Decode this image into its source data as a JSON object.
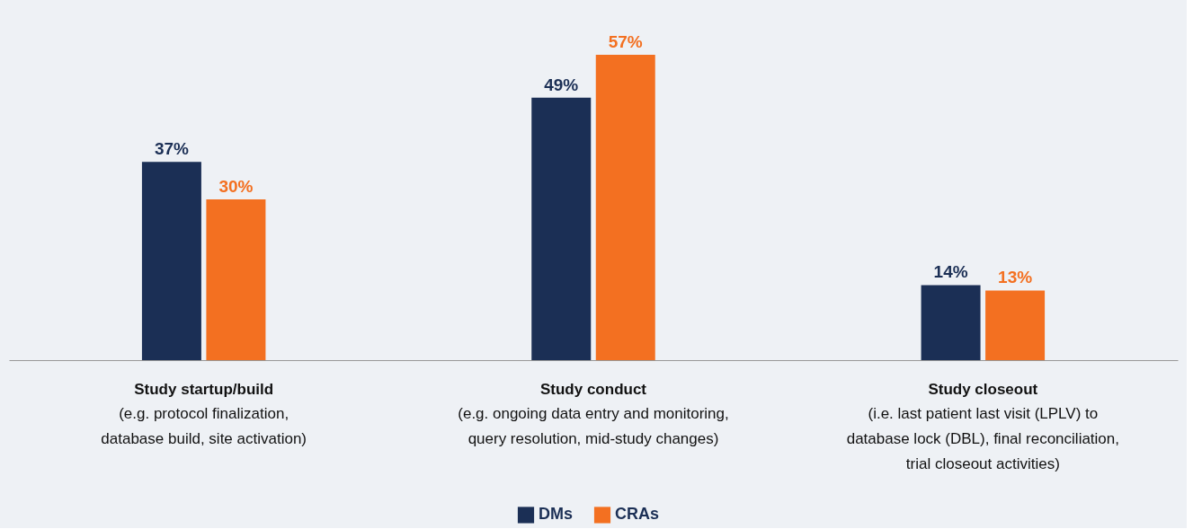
{
  "chart_data": {
    "type": "bar",
    "categories": [
      "Study startup/build",
      "Study conduct",
      "Study closeout"
    ],
    "series": [
      {
        "name": "DMs",
        "color": "#1b2f55",
        "values": [
          37,
          49,
          14
        ],
        "value_labels": [
          "37%",
          "49%",
          "14%"
        ]
      },
      {
        "name": "CRAs",
        "color": "#f37021",
        "values": [
          30,
          57,
          13
        ],
        "value_labels": [
          "30%",
          "57%",
          "13%"
        ]
      }
    ],
    "annotations": [
      "(e.g. protocol finalization,\ndatabase build, site activation)",
      "(e.g. ongoing data entry and monitoring,\nquery resolution, mid-study changes)",
      "(i.e. last patient last visit (LPLV) to\ndatabase lock (DBL), final reconciliation,\ntrial closeout activities)"
    ],
    "legend": "bottom",
    "grid": false
  }
}
